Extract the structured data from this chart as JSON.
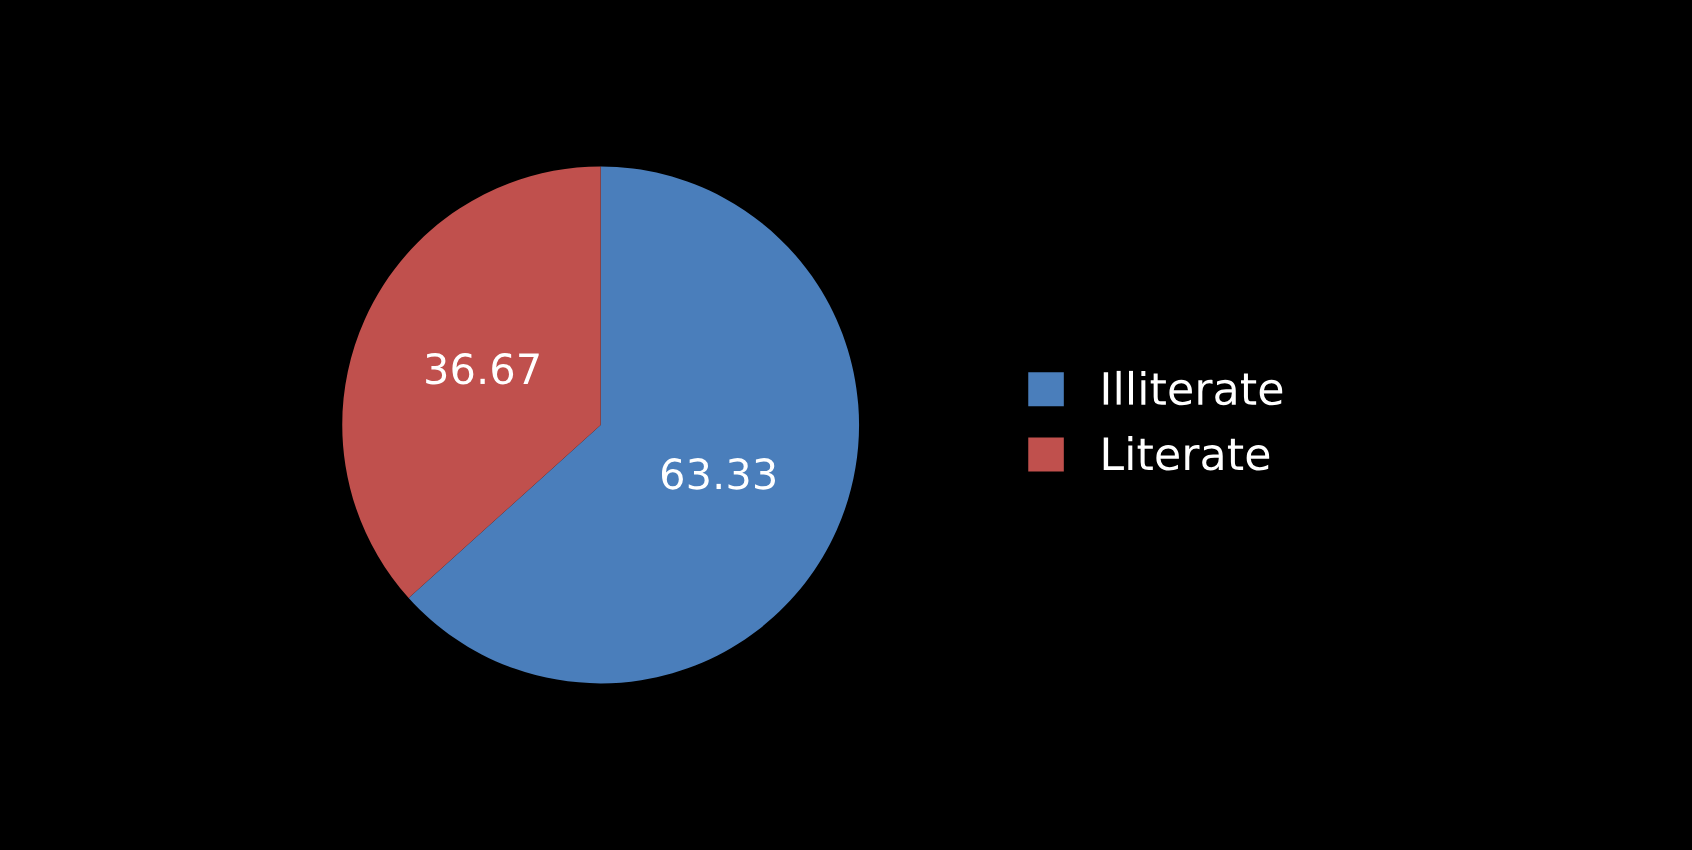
{
  "chart_data": {
    "type": "pie",
    "categories": [
      "Illiterate",
      "Literate"
    ],
    "values": [
      63.33,
      36.67
    ],
    "colors": [
      "#4a7ebb",
      "#c0504d"
    ],
    "data_labels": true,
    "legend": "right"
  }
}
